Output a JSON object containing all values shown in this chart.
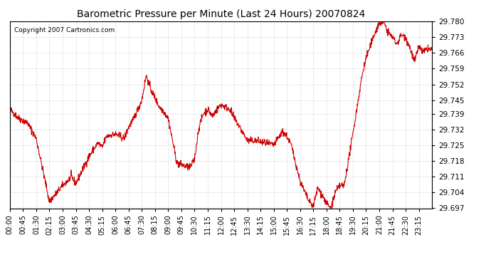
{
  "title": "Barometric Pressure per Minute (Last 24 Hours) 20070824",
  "copyright_text": "Copyright 2007 Cartronics.com",
  "line_color": "#cc0000",
  "background_color": "#ffffff",
  "grid_color": "#cccccc",
  "ylim": [
    29.697,
    29.78
  ],
  "yticks": [
    29.697,
    29.704,
    29.711,
    29.718,
    29.725,
    29.732,
    29.739,
    29.745,
    29.752,
    29.759,
    29.766,
    29.773,
    29.78
  ],
  "xtick_labels": [
    "00:00",
    "00:45",
    "01:30",
    "02:15",
    "03:00",
    "03:45",
    "04:30",
    "05:15",
    "06:00",
    "06:45",
    "07:30",
    "08:15",
    "09:00",
    "09:45",
    "10:30",
    "11:15",
    "12:00",
    "12:45",
    "13:30",
    "14:15",
    "15:00",
    "15:45",
    "16:30",
    "17:15",
    "18:00",
    "18:45",
    "19:30",
    "20:15",
    "21:00",
    "21:45",
    "22:30",
    "23:15"
  ],
  "xtick_positions": [
    0,
    45,
    90,
    135,
    180,
    225,
    270,
    315,
    360,
    405,
    450,
    495,
    540,
    585,
    630,
    675,
    720,
    765,
    810,
    855,
    900,
    945,
    990,
    1035,
    1080,
    1125,
    1170,
    1215,
    1260,
    1305,
    1350,
    1395
  ],
  "control_points": [
    [
      0,
      29.741
    ],
    [
      30,
      29.737
    ],
    [
      60,
      29.735
    ],
    [
      90,
      29.728
    ],
    [
      135,
      29.7
    ],
    [
      180,
      29.707
    ],
    [
      210,
      29.711
    ],
    [
      225,
      29.708
    ],
    [
      270,
      29.72
    ],
    [
      300,
      29.726
    ],
    [
      315,
      29.724
    ],
    [
      330,
      29.729
    ],
    [
      360,
      29.73
    ],
    [
      390,
      29.728
    ],
    [
      405,
      29.733
    ],
    [
      420,
      29.736
    ],
    [
      450,
      29.745
    ],
    [
      465,
      29.756
    ],
    [
      480,
      29.75
    ],
    [
      510,
      29.742
    ],
    [
      525,
      29.74
    ],
    [
      540,
      29.737
    ],
    [
      570,
      29.717
    ],
    [
      615,
      29.715
    ],
    [
      630,
      29.719
    ],
    [
      645,
      29.733
    ],
    [
      660,
      29.739
    ],
    [
      675,
      29.741
    ],
    [
      690,
      29.738
    ],
    [
      720,
      29.743
    ],
    [
      750,
      29.741
    ],
    [
      765,
      29.737
    ],
    [
      780,
      29.734
    ],
    [
      810,
      29.727
    ],
    [
      840,
      29.727
    ],
    [
      870,
      29.726
    ],
    [
      900,
      29.725
    ],
    [
      930,
      29.731
    ],
    [
      945,
      29.729
    ],
    [
      960,
      29.725
    ],
    [
      990,
      29.709
    ],
    [
      1020,
      29.7
    ],
    [
      1035,
      29.698
    ],
    [
      1050,
      29.706
    ],
    [
      1065,
      29.703
    ],
    [
      1080,
      29.699
    ],
    [
      1095,
      29.697
    ],
    [
      1110,
      29.704
    ],
    [
      1125,
      29.707
    ],
    [
      1140,
      29.707
    ],
    [
      1170,
      29.73
    ],
    [
      1200,
      29.755
    ],
    [
      1215,
      29.764
    ],
    [
      1230,
      29.769
    ],
    [
      1245,
      29.775
    ],
    [
      1260,
      29.779
    ],
    [
      1275,
      29.78
    ],
    [
      1290,
      29.775
    ],
    [
      1305,
      29.773
    ],
    [
      1320,
      29.77
    ],
    [
      1335,
      29.774
    ],
    [
      1350,
      29.773
    ],
    [
      1365,
      29.768
    ],
    [
      1380,
      29.762
    ],
    [
      1395,
      29.769
    ],
    [
      1410,
      29.766
    ],
    [
      1425,
      29.768
    ],
    [
      1440,
      29.767
    ]
  ],
  "noise_std": 0.0008,
  "seed": 42
}
